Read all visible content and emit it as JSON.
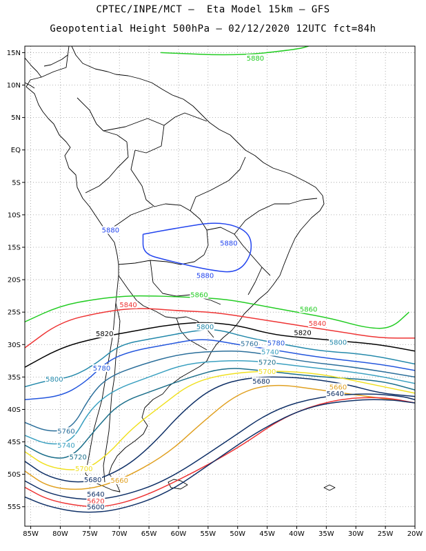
{
  "header": {
    "title_line1": "CPTEC/INPE/MCT –  Eta Model 15km – GFS",
    "title_line2": "Geopotential Height 500hPa – 02/12/2020 12UTC fct=84h"
  },
  "map": {
    "lon_range": [
      -86,
      -20
    ],
    "lat_range": [
      -58,
      16
    ],
    "lon_ticks": [
      {
        "lon": -85,
        "label": "85W"
      },
      {
        "lon": -80,
        "label": "80W"
      },
      {
        "lon": -75,
        "label": "75W"
      },
      {
        "lon": -70,
        "label": "70W"
      },
      {
        "lon": -65,
        "label": "65W"
      },
      {
        "lon": -60,
        "label": "60W"
      },
      {
        "lon": -55,
        "label": "55W"
      },
      {
        "lon": -50,
        "label": "50W"
      },
      {
        "lon": -45,
        "label": "45W"
      },
      {
        "lon": -40,
        "label": "40W"
      },
      {
        "lon": -35,
        "label": "35W"
      },
      {
        "lon": -30,
        "label": "30W"
      },
      {
        "lon": -25,
        "label": "25W"
      },
      {
        "lon": -20,
        "label": "20W"
      }
    ],
    "lat_ticks": [
      {
        "lat": 15,
        "label": "15N"
      },
      {
        "lat": 10,
        "label": "10N"
      },
      {
        "lat": 5,
        "label": "5N"
      },
      {
        "lat": 0,
        "label": "EQ"
      },
      {
        "lat": -5,
        "label": "5S"
      },
      {
        "lat": -10,
        "label": "10S"
      },
      {
        "lat": -15,
        "label": "15S"
      },
      {
        "lat": -20,
        "label": "20S"
      },
      {
        "lat": -25,
        "label": "25S"
      },
      {
        "lat": -30,
        "label": "30S"
      },
      {
        "lat": -35,
        "label": "35S"
      },
      {
        "lat": -40,
        "label": "40S"
      },
      {
        "lat": -45,
        "label": "45S"
      },
      {
        "lat": -50,
        "label": "50S"
      },
      {
        "lat": -55,
        "label": "55S"
      }
    ],
    "grid": true
  },
  "contours": [
    {
      "level": "5880",
      "color": "#22cc22",
      "line": [
        [
          -63,
          15
        ],
        [
          -50,
          14.5
        ],
        [
          -40,
          15.5
        ],
        [
          -38,
          16
        ]
      ],
      "labels": [
        [
          -47,
          14
        ]
      ]
    },
    {
      "level": "5880",
      "color": "#2244ee",
      "closed": true,
      "line": [
        [
          -66,
          -13
        ],
        [
          -60,
          -12
        ],
        [
          -53,
          -11
        ],
        [
          -48,
          -12.5
        ],
        [
          -47.5,
          -16
        ],
        [
          -50,
          -19
        ],
        [
          -55,
          -18.5
        ],
        [
          -62,
          -17
        ],
        [
          -66,
          -16
        ],
        [
          -66,
          -13
        ]
      ],
      "labels": [
        [
          -71.5,
          -12.5
        ],
        [
          -51.5,
          -14.5
        ],
        [
          -55.5,
          -19.5
        ]
      ]
    },
    {
      "level": "5860",
      "color": "#22cc22",
      "line": [
        [
          -86,
          -26.5
        ],
        [
          -80,
          -24
        ],
        [
          -74,
          -23
        ],
        [
          -69,
          -22.5
        ],
        [
          -64,
          -22.5
        ],
        [
          -58,
          -22.7
        ],
        [
          -52,
          -23
        ],
        [
          -46,
          -24
        ],
        [
          -40,
          -25
        ],
        [
          -34,
          -26
        ],
        [
          -28,
          -27.5
        ],
        [
          -24,
          -27.5
        ],
        [
          -21,
          -25
        ]
      ],
      "labels": [
        [
          -56.5,
          -22.5
        ],
        [
          -38,
          -24.7
        ]
      ]
    },
    {
      "level": "5840",
      "color": "#ee3333",
      "line": [
        [
          -86,
          -30.5
        ],
        [
          -80,
          -26.5
        ],
        [
          -73,
          -25
        ],
        [
          -67,
          -24.3
        ],
        [
          -60,
          -24.8
        ],
        [
          -54,
          -25
        ],
        [
          -47,
          -26
        ],
        [
          -40,
          -27
        ],
        [
          -33,
          -28
        ],
        [
          -26,
          -29
        ],
        [
          -20,
          -29
        ]
      ],
      "labels": [
        [
          -68.5,
          -24
        ],
        [
          -36.5,
          -26.9
        ]
      ]
    },
    {
      "level": "5820",
      "color": "#000000",
      "line": [
        [
          -86,
          -33.5
        ],
        [
          -80,
          -30.5
        ],
        [
          -74,
          -29
        ],
        [
          -68,
          -28
        ],
        [
          -62,
          -27
        ],
        [
          -56,
          -26.5
        ],
        [
          -50,
          -27
        ],
        [
          -44,
          -28.5
        ],
        [
          -38,
          -29
        ],
        [
          -32,
          -29.5
        ],
        [
          -26,
          -30
        ],
        [
          -20,
          -31
        ]
      ],
      "labels": [
        [
          -72.5,
          -28.5
        ],
        [
          -39,
          -28.3
        ]
      ]
    },
    {
      "level": "5800",
      "color": "#2288aa",
      "line": [
        [
          -86,
          -36.5
        ],
        [
          -82,
          -35.5
        ],
        [
          -78,
          -35
        ],
        [
          -74,
          -33
        ],
        [
          -70,
          -30
        ],
        [
          -64,
          -29
        ],
        [
          -58,
          -28
        ],
        [
          -54,
          -27.5
        ],
        [
          -48,
          -29
        ],
        [
          -42,
          -30
        ],
        [
          -36,
          -31
        ],
        [
          -28,
          -31.5
        ],
        [
          -20,
          -33
        ]
      ],
      "labels": [
        [
          -81,
          -35.5
        ],
        [
          -55.5,
          -27.4
        ],
        [
          -33,
          -29.8
        ]
      ]
    },
    {
      "level": "5780",
      "color": "#2255dd",
      "line": [
        [
          -86,
          -38.5
        ],
        [
          -80,
          -38
        ],
        [
          -76,
          -36
        ],
        [
          -72,
          -32.5
        ],
        [
          -68,
          -31
        ],
        [
          -62,
          -30
        ],
        [
          -56,
          -29
        ],
        [
          -50,
          -30
        ],
        [
          -44,
          -30.8
        ],
        [
          -36,
          -32
        ],
        [
          -26,
          -33
        ],
        [
          -20,
          -34
        ]
      ],
      "labels": [
        [
          -73,
          -33.8
        ],
        [
          -43.5,
          -29.9
        ]
      ]
    },
    {
      "level": "5760",
      "color": "#2a6e9a",
      "line": [
        [
          -86,
          -42
        ],
        [
          -82,
          -43.5
        ],
        [
          -78,
          -43
        ],
        [
          -75,
          -38
        ],
        [
          -72,
          -35
        ],
        [
          -66,
          -33
        ],
        [
          -60,
          -31.5
        ],
        [
          -54,
          -31
        ],
        [
          -48,
          -31
        ],
        [
          -40,
          -32.5
        ],
        [
          -30,
          -33.5
        ],
        [
          -20,
          -35
        ]
      ],
      "labels": [
        [
          -79,
          -43.5
        ],
        [
          -48,
          -30
        ]
      ]
    },
    {
      "level": "5740",
      "color": "#3aa0c0",
      "line": [
        [
          -86,
          -44
        ],
        [
          -82,
          -45.5
        ],
        [
          -78,
          -45
        ],
        [
          -75,
          -40
        ],
        [
          -71,
          -37
        ],
        [
          -65,
          -35
        ],
        [
          -59,
          -33
        ],
        [
          -53,
          -32.5
        ],
        [
          -47,
          -32.5
        ],
        [
          -38,
          -33.5
        ],
        [
          -28,
          -34.5
        ],
        [
          -20,
          -36
        ]
      ],
      "labels": [
        [
          -79,
          -45.7
        ],
        [
          -44.5,
          -31.3
        ]
      ]
    },
    {
      "level": "5720",
      "color": "#1a6e8a",
      "line": [
        [
          -86,
          -45.5
        ],
        [
          -82,
          -47.5
        ],
        [
          -78,
          -47.5
        ],
        [
          -74,
          -43
        ],
        [
          -70,
          -39
        ],
        [
          -64,
          -37
        ],
        [
          -58,
          -35
        ],
        [
          -52,
          -33.5
        ],
        [
          -46,
          -34
        ],
        [
          -36,
          -35
        ],
        [
          -26,
          -35.5
        ],
        [
          -20,
          -37
        ]
      ],
      "labels": [
        [
          -77,
          -47.5
        ],
        [
          -45,
          -32.9
        ]
      ]
    },
    {
      "level": "5700",
      "color": "#f0e020",
      "line": [
        [
          -86,
          -46.5
        ],
        [
          -82,
          -49
        ],
        [
          -76,
          -49.5
        ],
        [
          -72,
          -47
        ],
        [
          -68,
          -43
        ],
        [
          -63,
          -39.5
        ],
        [
          -58,
          -36
        ],
        [
          -52,
          -34.5
        ],
        [
          -44,
          -34
        ],
        [
          -36,
          -34.5
        ],
        [
          -28,
          -36
        ],
        [
          -20,
          -37.5
        ]
      ],
      "labels": [
        [
          -76,
          -49.3
        ],
        [
          -45,
          -34.3
        ]
      ]
    },
    {
      "level": "5680",
      "color": "#0e2f66",
      "line": [
        [
          -86,
          -48
        ],
        [
          -82,
          -50.5
        ],
        [
          -76,
          -51.5
        ],
        [
          -70,
          -49.5
        ],
        [
          -65,
          -46
        ],
        [
          -59,
          -40
        ],
        [
          -54,
          -36.5
        ],
        [
          -48,
          -35
        ],
        [
          -40,
          -35
        ],
        [
          -32,
          -36
        ],
        [
          -26,
          -37.5
        ],
        [
          -20,
          -38
        ]
      ],
      "labels": [
        [
          -74.5,
          -51
        ],
        [
          -46,
          -35.8
        ]
      ]
    },
    {
      "level": "5660",
      "color": "#e0a020",
      "line": [
        [
          -86,
          -49.5
        ],
        [
          -82,
          -52
        ],
        [
          -76,
          -52.5
        ],
        [
          -70,
          -51
        ],
        [
          -62,
          -47
        ],
        [
          -56,
          -42
        ],
        [
          -50,
          -37.5
        ],
        [
          -44,
          -36
        ],
        [
          -36,
          -37
        ],
        [
          -28,
          -38
        ],
        [
          -20,
          -39
        ]
      ],
      "labels": [
        [
          -70,
          -51.1
        ],
        [
          -33,
          -36.7
        ]
      ]
    },
    {
      "level": "5640",
      "color": "#0e2f66",
      "line": [
        [
          -86,
          -51
        ],
        [
          -82,
          -53
        ],
        [
          -76,
          -54
        ],
        [
          -70,
          -53.5
        ],
        [
          -62,
          -51
        ],
        [
          -52,
          -45
        ],
        [
          -44,
          -40
        ],
        [
          -36,
          -38
        ],
        [
          -28,
          -37.5
        ],
        [
          -22,
          -38
        ],
        [
          -20,
          -38.5
        ]
      ],
      "labels": [
        [
          -74,
          -53.2
        ],
        [
          -33.5,
          -37.7
        ]
      ]
    },
    {
      "level": "5620",
      "color": "#ee3333",
      "line": [
        [
          -86,
          -52
        ],
        [
          -82,
          -54
        ],
        [
          -76,
          -55
        ],
        [
          -72,
          -55
        ],
        [
          -66,
          -53.5
        ],
        [
          -58,
          -50
        ],
        [
          -50,
          -46
        ],
        [
          -42,
          -41
        ],
        [
          -34,
          -38.5
        ],
        [
          -26,
          -38
        ],
        [
          -20,
          -39
        ]
      ],
      "labels": [
        [
          -74,
          -54.3
        ]
      ]
    },
    {
      "level": "5600",
      "color": "#0e2f66",
      "line": [
        [
          -86,
          -53.5
        ],
        [
          -82,
          -55
        ],
        [
          -76,
          -56
        ],
        [
          -70,
          -55.5
        ],
        [
          -62,
          -53
        ],
        [
          -54,
          -48
        ],
        [
          -46,
          -43
        ],
        [
          -38,
          -39.5
        ],
        [
          -30,
          -38.5
        ],
        [
          -24,
          -38.5
        ],
        [
          -20,
          -39
        ]
      ],
      "labels": [
        [
          -74,
          -55.2
        ]
      ]
    }
  ]
}
